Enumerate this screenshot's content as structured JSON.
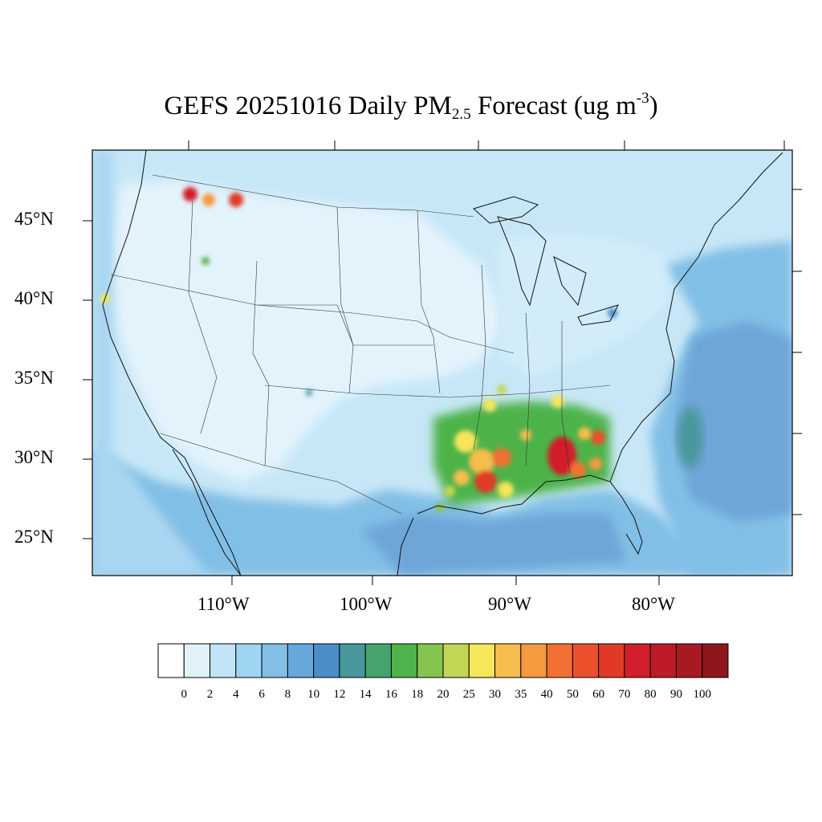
{
  "title": {
    "prefix": "GEFS 20251016 Daily PM",
    "subscript": "2.5",
    "middle": " Forecast (ug m",
    "superscript": "-3",
    "suffix": ")"
  },
  "axes": {
    "lat_labels": [
      "45°N",
      "40°N",
      "35°N",
      "30°N",
      "25°N"
    ],
    "lon_labels": [
      "110°W",
      "100°W",
      "90°W",
      "80°W"
    ]
  },
  "colorbar": {
    "labels": [
      "0",
      "2",
      "4",
      "6",
      "8",
      "10",
      "12",
      "14",
      "16",
      "18",
      "20",
      "25",
      "30",
      "35",
      "40",
      "50",
      "60",
      "70",
      "80",
      "90",
      "100"
    ],
    "colors": [
      "#ffffff",
      "#e2f2fb",
      "#c2e4f7",
      "#9fd5f3",
      "#82bfe6",
      "#67a8dc",
      "#4b8dc8",
      "#48979b",
      "#45a36d",
      "#4db34a",
      "#84c44f",
      "#c2d656",
      "#f6e65a",
      "#f6bd4e",
      "#f59a3e",
      "#f27034",
      "#ea502c",
      "#e03a27",
      "#d21f2b",
      "#bd1b27",
      "#a81a22",
      "#8e171d"
    ]
  },
  "map_legend": {
    "background": "#c7e7f7",
    "land_clean": "#e3f3fc",
    "ocean_gulf": "#82bfe6",
    "ocean_atlantic": "#6ea6d8"
  }
}
